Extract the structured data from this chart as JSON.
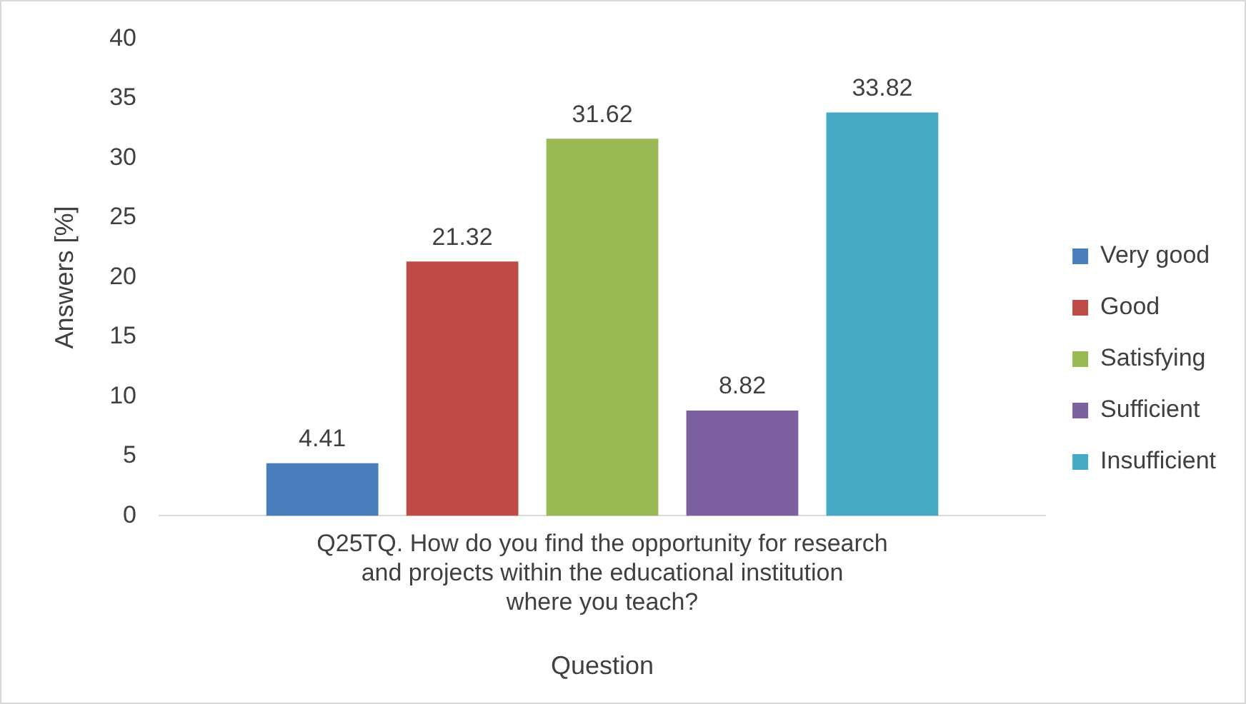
{
  "chart_data": {
    "type": "bar",
    "xlabel": "Question",
    "ylabel": "Answers [%]",
    "categories": [
      "Q25TQ. How do you find the opportunity for research and projects within the educational institution where you teach?"
    ],
    "series": [
      {
        "name": "Very good",
        "color": "#4a7ebb",
        "values": [
          4.41
        ]
      },
      {
        "name": "Good",
        "color": "#be4b48",
        "values": [
          21.32
        ]
      },
      {
        "name": "Satisfying",
        "color": "#98b954",
        "values": [
          31.62
        ]
      },
      {
        "name": "Sufficient",
        "color": "#7d60a0",
        "values": [
          8.82
        ]
      },
      {
        "name": "Insufficient",
        "color": "#46aac5",
        "values": [
          33.82
        ]
      }
    ],
    "ylim": [
      0,
      40
    ],
    "yticks": [
      0,
      5,
      10,
      15,
      20,
      25,
      30,
      35,
      40
    ],
    "grid": false,
    "legend": "right",
    "data_labels": true
  }
}
